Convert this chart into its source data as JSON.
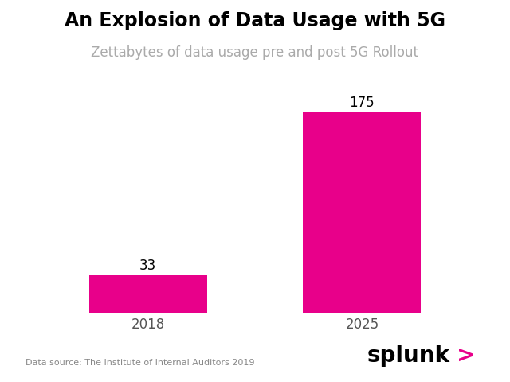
{
  "title": "An Explosion of Data Usage with 5G",
  "subtitle": "Zettabytes of data usage pre and post 5G Rollout",
  "categories": [
    "2018",
    "2025"
  ],
  "values": [
    33,
    175
  ],
  "bar_color": "#E8008A",
  "bar_width": 0.55,
  "label_fontsize": 12,
  "title_fontsize": 17,
  "subtitle_fontsize": 12,
  "subtitle_color": "#AAAAAA",
  "tick_fontsize": 12,
  "tick_color": "#555555",
  "data_source": "Data source: The Institute of Internal Auditors 2019",
  "data_source_fontsize": 8,
  "data_source_color": "#888888",
  "splunk_fontsize": 20,
  "background_color": "#FFFFFF",
  "ylim": [
    0,
    200
  ]
}
